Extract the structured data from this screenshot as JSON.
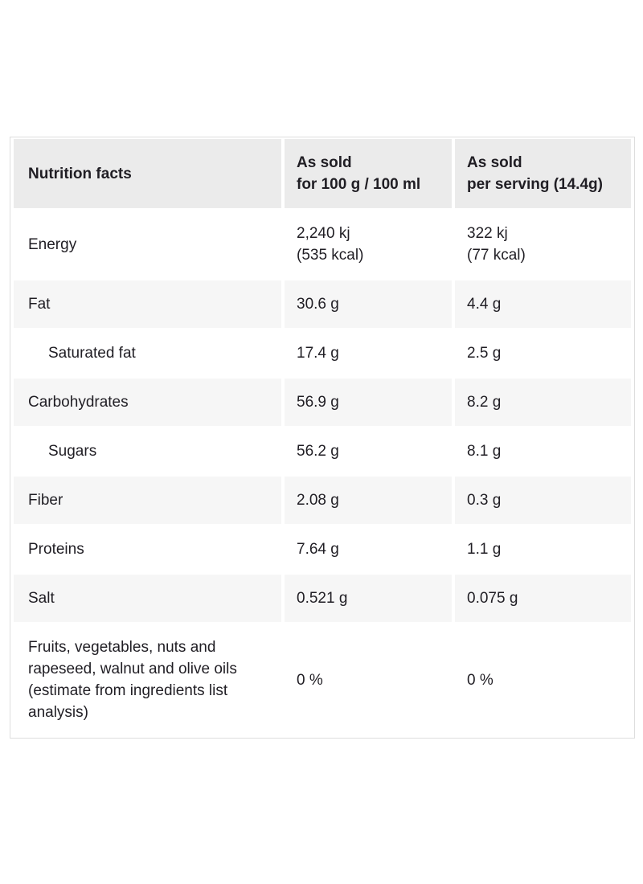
{
  "table": {
    "header": {
      "title": "Nutrition facts",
      "col_per_100": {
        "line1": "As sold",
        "line2": "for 100 g / 100 ml"
      },
      "col_per_serving": {
        "line1": "As sold",
        "line2": "per serving (14.4g)"
      }
    },
    "rows": [
      {
        "label": "Energy",
        "indent": false,
        "shaded": false,
        "per_100": [
          "2,240 kj",
          "(535 kcal)"
        ],
        "per_serving": [
          "322 kj",
          "(77 kcal)"
        ]
      },
      {
        "label": "Fat",
        "indent": false,
        "shaded": true,
        "per_100": [
          "30.6 g"
        ],
        "per_serving": [
          "4.4 g"
        ]
      },
      {
        "label": "Saturated fat",
        "indent": true,
        "shaded": false,
        "per_100": [
          "17.4 g"
        ],
        "per_serving": [
          "2.5 g"
        ]
      },
      {
        "label": "Carbohydrates",
        "indent": false,
        "shaded": true,
        "per_100": [
          "56.9 g"
        ],
        "per_serving": [
          "8.2 g"
        ]
      },
      {
        "label": "Sugars",
        "indent": true,
        "shaded": false,
        "per_100": [
          "56.2 g"
        ],
        "per_serving": [
          "8.1 g"
        ]
      },
      {
        "label": "Fiber",
        "indent": false,
        "shaded": true,
        "per_100": [
          "2.08 g"
        ],
        "per_serving": [
          "0.3 g"
        ]
      },
      {
        "label": "Proteins",
        "indent": false,
        "shaded": false,
        "per_100": [
          "7.64 g"
        ],
        "per_serving": [
          "1.1 g"
        ]
      },
      {
        "label": "Salt",
        "indent": false,
        "shaded": true,
        "per_100": [
          "0.521 g"
        ],
        "per_serving": [
          "0.075 g"
        ]
      },
      {
        "label": "Fruits, vegetables, nuts and rapeseed, walnut and olive oils (estimate from ingredients list analysis)",
        "indent": false,
        "shaded": false,
        "per_100": [
          "0 %"
        ],
        "per_serving": [
          "0 %"
        ]
      }
    ],
    "colors": {
      "header_bg": "#ebebeb",
      "stripe_bg": "#f6f6f6",
      "border": "#dedede",
      "text": "#201e24",
      "page_bg": "#ffffff"
    }
  }
}
